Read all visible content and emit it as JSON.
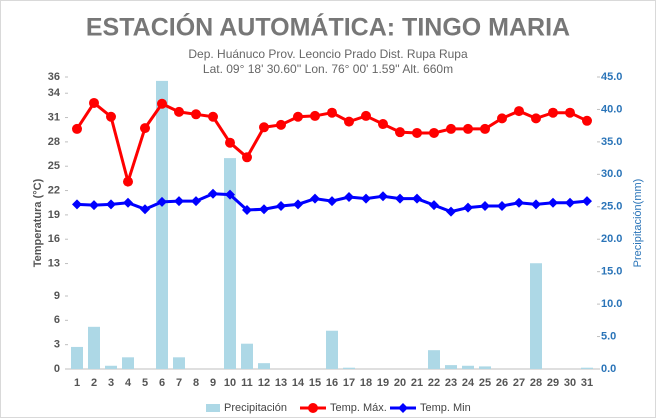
{
  "chart_data": {
    "type": "combo",
    "title": "ESTACIÓN AUTOMÁTICA: TINGO MARIA",
    "subtitle": [
      "Dep. Huánuco Prov. Leoncio Prado Dist. Rupa Rupa",
      "Lat. 09° 18' 30.60'' Lon. 76° 00' 1.59'' Alt. 660m"
    ],
    "y_label": "Temperatura (°C)",
    "y2_label": "Precipitación(mm)",
    "categories": [
      "1",
      "2",
      "3",
      "4",
      "5",
      "6",
      "7",
      "8",
      "9",
      "10",
      "11",
      "12",
      "13",
      "14",
      "15",
      "16",
      "17",
      "18",
      "19",
      "20",
      "21",
      "22",
      "23",
      "24",
      "25",
      "26",
      "27",
      "28",
      "29",
      "30",
      "31"
    ],
    "ylim": [
      0,
      36
    ],
    "yticks": [
      0,
      3,
      6,
      9,
      13,
      16,
      19,
      22,
      25,
      28,
      31,
      34,
      36
    ],
    "y2lim": [
      0,
      45
    ],
    "y2ticks": [
      {
        "value": 0,
        "label": "0.0"
      },
      {
        "value": 5,
        "label": "5.0"
      },
      {
        "value": 10,
        "label": "10.0"
      },
      {
        "value": 15,
        "label": "15.0"
      },
      {
        "value": 20,
        "label": "20.0"
      },
      {
        "value": 25,
        "label": "25.0"
      },
      {
        "value": 30,
        "label": "30.0"
      },
      {
        "value": 35,
        "label": "35.0"
      },
      {
        "value": 40,
        "label": "40.0"
      },
      {
        "value": 45,
        "label": "45.0"
      }
    ],
    "legend": "bottom",
    "series": [
      {
        "name": "Precipitación",
        "type": "bar",
        "axis": "y2",
        "color": "#add8e6",
        "values": [
          3.4,
          6.5,
          0.5,
          1.8,
          0,
          44.4,
          1.8,
          0,
          0,
          32.5,
          3.9,
          0.9,
          0,
          0,
          0,
          5.9,
          0.2,
          0,
          0,
          0,
          0,
          2.9,
          0.6,
          0.5,
          0.4,
          0,
          0,
          16.3,
          0,
          0,
          0.2
        ]
      },
      {
        "name": "Temp. Máx.",
        "type": "line",
        "marker": "circle",
        "color": "#ff0000",
        "values": [
          29.6,
          32.8,
          31.1,
          23.1,
          29.7,
          32.7,
          31.7,
          31.4,
          31.1,
          27.9,
          26.1,
          29.8,
          30.1,
          31.1,
          31.2,
          31.6,
          30.5,
          31.2,
          30.2,
          29.2,
          29.1,
          29.1,
          29.6,
          29.6,
          29.6,
          30.9,
          31.8,
          30.9,
          31.6,
          31.6,
          30.6
        ]
      },
      {
        "name": "Temp. Min",
        "type": "line",
        "marker": "diamond",
        "color": "#0000ff",
        "values": [
          20.3,
          20.2,
          20.3,
          20.5,
          19.7,
          20.6,
          20.7,
          20.7,
          21.6,
          21.5,
          19.6,
          19.7,
          20.1,
          20.3,
          21.0,
          20.7,
          21.2,
          21.0,
          21.3,
          21.0,
          21.0,
          20.2,
          19.4,
          19.9,
          20.1,
          20.1,
          20.5,
          20.3,
          20.5,
          20.5,
          20.7
        ]
      }
    ]
  }
}
